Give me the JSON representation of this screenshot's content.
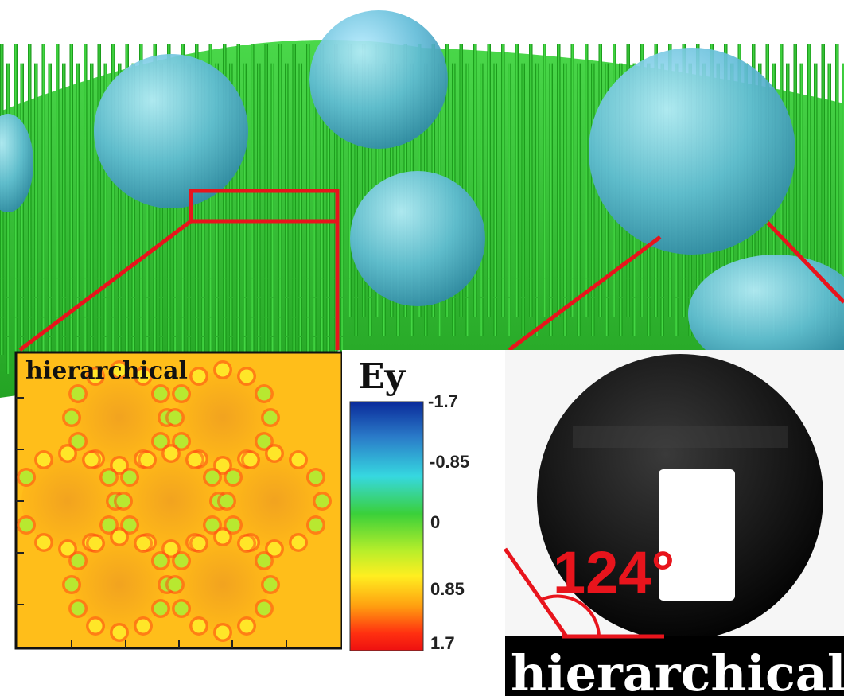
{
  "figure": {
    "inset_map_label": "hierarchical",
    "colorbar": {
      "title": "Ey",
      "ticks": [
        "-1.7",
        "-0.85",
        "0",
        "0.85",
        "1.7"
      ],
      "colors": [
        "#0a2a9a",
        "#2a7ac8",
        "#36d8e0",
        "#3ad03a",
        "#b8ee2a",
        "#ffee20",
        "#ffa010",
        "#ff3010",
        "#ee1010"
      ]
    },
    "contact_angle": {
      "value_label": "124°",
      "surface_label": "hierarchical"
    },
    "colors": {
      "pillar_green": "#1fb81f",
      "droplet_blue": "#5ab8d8",
      "zoom_red": "#e8141c",
      "map_background": "#ffbe1a"
    }
  }
}
